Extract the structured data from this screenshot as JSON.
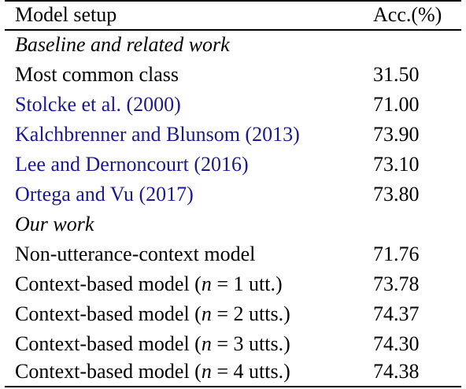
{
  "header": {
    "col1": "Model setup",
    "col2": "Acc.(%)"
  },
  "sections": [
    {
      "title": "Baseline and related work",
      "rows": [
        {
          "model": "Most common class",
          "acc": "31.50"
        },
        {
          "model": "Stolcke et al. (2000)",
          "acc": "71.00",
          "cite": true
        },
        {
          "model": "Kalchbrenner and Blunsom (2013)",
          "acc": "73.90",
          "cite": true
        },
        {
          "model": "Lee and Dernoncourt (2016)",
          "acc": "73.10",
          "cite": true
        },
        {
          "model": "Ortega and Vu (2017)",
          "acc": "73.80",
          "cite": true
        }
      ]
    },
    {
      "title": "Our work",
      "rows": [
        {
          "model": "Non-utterance-context model",
          "acc": "71.76"
        },
        {
          "model_prefix": "Context-based model (",
          "model_var": "n",
          "model_suffix": " = 1 utt.)",
          "acc": "73.78"
        },
        {
          "model_prefix": "Context-based model (",
          "model_var": "n",
          "model_suffix": " = 2 utts.)",
          "acc": "74.37"
        },
        {
          "model_prefix": "Context-based model (",
          "model_var": "n",
          "model_suffix": " = 3 utts.)",
          "acc": "74.30"
        },
        {
          "model_prefix": "Context-based model (",
          "model_var": "n",
          "model_suffix": " = 4 utts.)",
          "acc": "74.38"
        }
      ]
    }
  ],
  "colors": {
    "citation": "#1a1a8c",
    "text": "#000000"
  }
}
